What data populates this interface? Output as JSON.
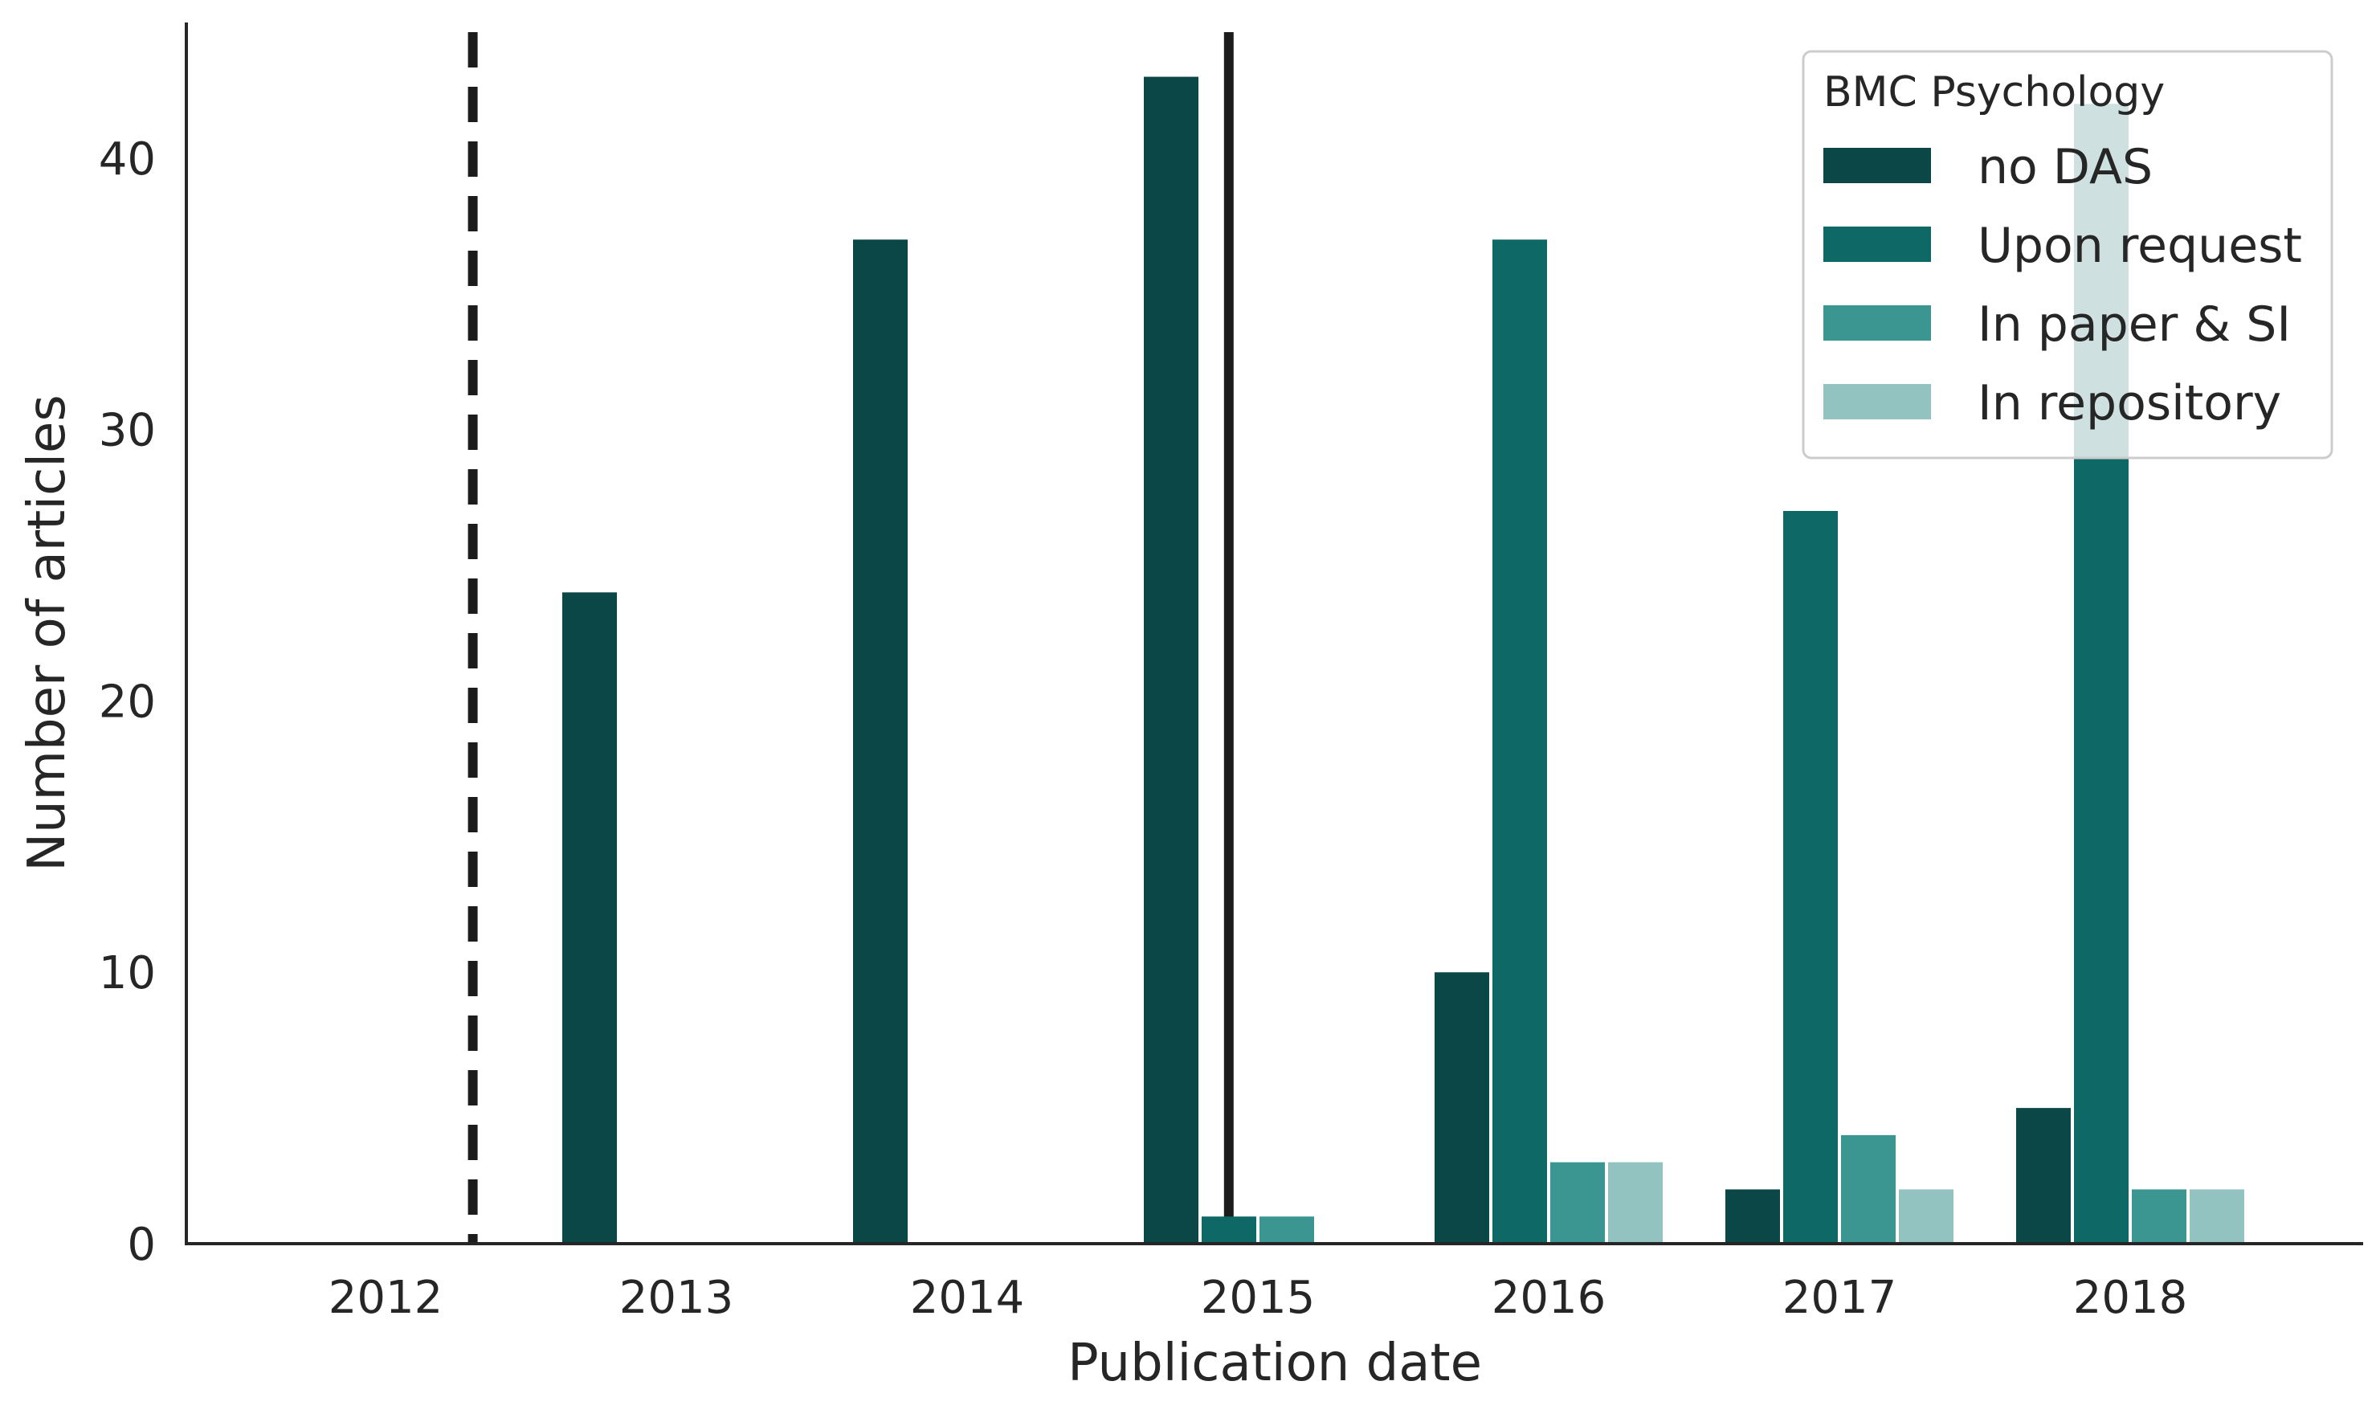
{
  "chart_data": {
    "type": "bar",
    "xlabel": "Publication date",
    "ylabel": "Number of articles",
    "categories": [
      "2012",
      "2013",
      "2014",
      "2015",
      "2016",
      "2017",
      "2018"
    ],
    "yticks": [
      "0",
      "10",
      "20",
      "30",
      "40"
    ],
    "ylim": [
      0,
      45
    ],
    "grid": false,
    "legend": {
      "title": "BMC Psychology",
      "placement": "top-right"
    },
    "series": [
      {
        "name": "no DAS",
        "color": "#0a4746",
        "values": [
          0,
          24,
          37,
          43,
          10,
          2,
          5
        ]
      },
      {
        "name": "Upon request",
        "color": "#0e6865",
        "values": [
          0,
          0,
          0,
          1,
          37,
          27,
          42
        ]
      },
      {
        "name": "In paper & SI",
        "color": "#3b9692",
        "values": [
          0,
          0,
          0,
          1,
          3,
          4,
          2
        ]
      },
      {
        "name": "In repository",
        "color": "#92c3c0",
        "values": [
          0,
          0,
          0,
          0,
          3,
          2,
          2
        ]
      }
    ],
    "reference_lines": [
      {
        "style": "dashed",
        "x": 2012.3
      },
      {
        "style": "solid",
        "x": 2014.9
      }
    ]
  }
}
